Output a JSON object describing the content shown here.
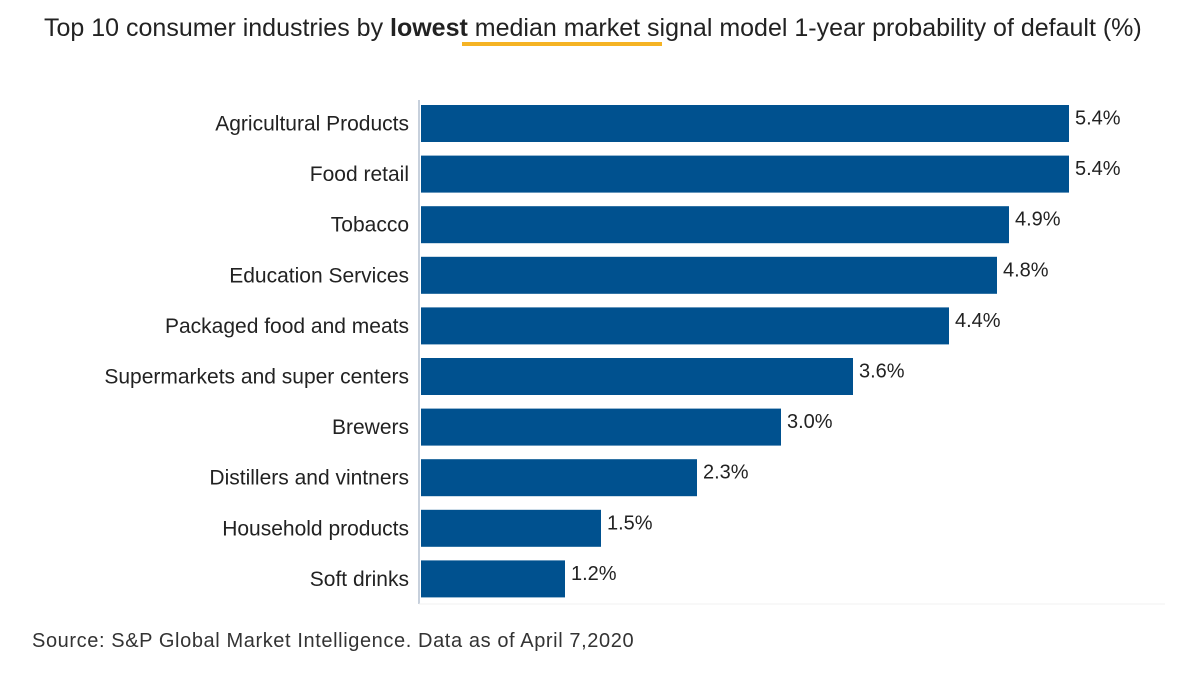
{
  "chart_data": {
    "type": "bar",
    "orientation": "horizontal",
    "subtitle_parts": [
      "Top 10 consumer industries by ",
      "lowest",
      " median market signal model 1-year probability of default (%)"
    ],
    "categories": [
      "Agricultural Products",
      "Food retail",
      "Tobacco",
      "Education Services",
      "Packaged food and meats",
      "Supermarkets and super centers",
      "Brewers",
      "Distillers and vintners",
      "Household products",
      "Soft drinks"
    ],
    "values": [
      5.4,
      5.4,
      4.9,
      4.8,
      4.4,
      3.6,
      3.0,
      2.3,
      1.5,
      1.2
    ],
    "labels": [
      "5.4%",
      "5.4%",
      "4.9%",
      "4.8%",
      "4.4%",
      "3.6%",
      "3.0%",
      "2.3%",
      "1.5%",
      "1.2%"
    ],
    "xlim": [
      0,
      5.4
    ],
    "bar_color": "#00518f",
    "accent_color": "#f5b324",
    "source": "Source: S&P Global Market Intelligence. Data as of April 7,2020"
  }
}
